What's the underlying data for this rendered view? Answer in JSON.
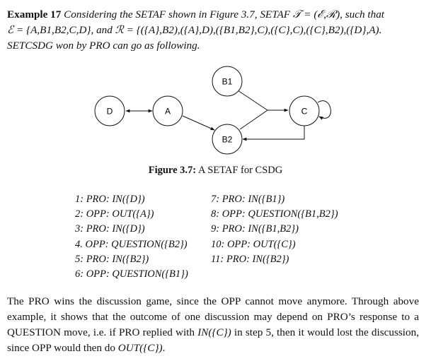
{
  "example": {
    "label": "Example 17",
    "text_line1": " Considering the SETAF shown in Figure 3.7, SETAF 𝒯 = (ℰ,ℛ), such that",
    "text_line2": "ℰ = {A,B1,B2,C,D}, and ℛ = {({A},B2),({A},D),({B1,B2},C),({C},C),({C},B2),({D},A).",
    "text_line3": "SETCSDG won by PRO can go as following."
  },
  "figure": {
    "nodes": [
      {
        "id": "D",
        "label": "D"
      },
      {
        "id": "A",
        "label": "A"
      },
      {
        "id": "B1",
        "label": "B1"
      },
      {
        "id": "B2",
        "label": "B2"
      },
      {
        "id": "C",
        "label": "C"
      }
    ],
    "caption_label": "Figure 3.7:",
    "caption_text": " A SETAF for CSDG"
  },
  "moves_left": [
    "1: PRO: IN({D})",
    "2: OPP: OUT({A})",
    "3: PRO: IN({D})",
    "4. OPP: QUESTION({B2})",
    "5: PRO: IN({B2})",
    "6: OPP: QUESTION({B1})"
  ],
  "moves_right": [
    "7: PRO: IN({B1})",
    "8: OPP: QUESTION({B1,B2})",
    "9: PRO: IN({B1,B2})",
    "10: OPP: OUT({C})",
    "11: PRO: IN({B2})"
  ],
  "paragraph": {
    "part1": "The PRO wins the discussion game, since the OPP cannot move anymore. Through above example, it shows that the outcome of one discussion may depend on PRO’s response to a QUESTION move, i.e. if PRO replied with ",
    "italic1": "IN({C})",
    "part2": " in step 5, then it would lost the discussion, since OPP would then do ",
    "italic2": "OUT({C})",
    "part3": "."
  }
}
